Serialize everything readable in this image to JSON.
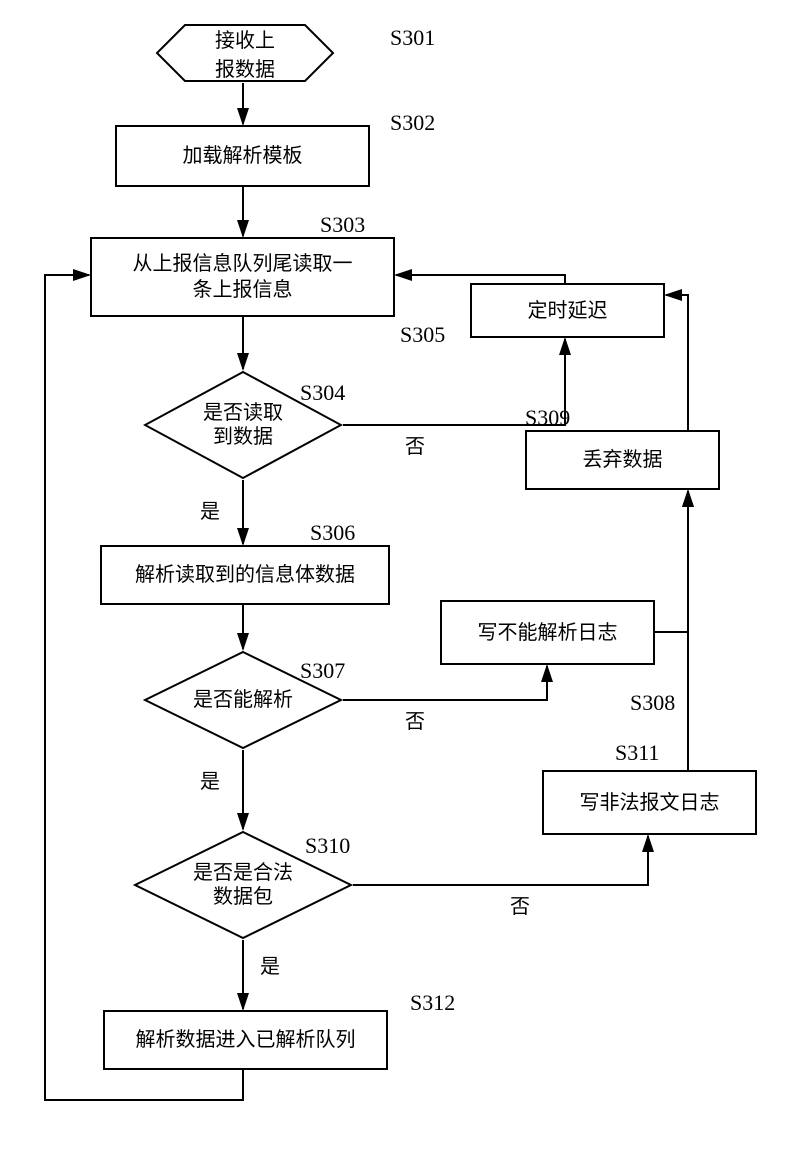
{
  "type": "flowchart",
  "background_color": "#ffffff",
  "stroke_color": "#000000",
  "stroke_width": 2,
  "font_family": "SimSun",
  "fontsize": 20,
  "label_fontsize": 22,
  "nodes": {
    "s301": {
      "label": "接收上\n报数据",
      "step": "S301",
      "shape": "hexagon"
    },
    "s302": {
      "label": "加载解析模板",
      "step": "S302",
      "shape": "rect"
    },
    "s303": {
      "label": "从上报信息队列尾读取一\n条上报信息",
      "step": "S303",
      "shape": "rect"
    },
    "s304": {
      "label": "是否读取\n到数据",
      "step": "S304",
      "shape": "diamond"
    },
    "s305": {
      "label": "定时延迟",
      "step": "S305",
      "shape": "rect"
    },
    "s306": {
      "label": "解析读取到的信息体数据",
      "step": "S306",
      "shape": "rect"
    },
    "s307": {
      "label": "是否能解析",
      "step": "S307",
      "shape": "diamond"
    },
    "s308": {
      "label": "写不能解析日志",
      "step": "S308",
      "shape": "rect"
    },
    "s309": {
      "label": "丢弃数据",
      "step": "S309",
      "shape": "rect"
    },
    "s310": {
      "label": "是否是合法\n数据包",
      "step": "S310",
      "shape": "diamond"
    },
    "s311": {
      "label": "写非法报文日志",
      "step": "S311",
      "shape": "rect"
    },
    "s312": {
      "label": "解析数据进入已解析队列",
      "step": "S312",
      "shape": "rect"
    }
  },
  "edge_labels": {
    "yes": "是",
    "no": "否"
  }
}
